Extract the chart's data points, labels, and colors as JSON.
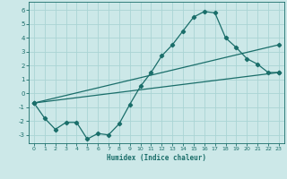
{
  "xlabel": "Humidex (Indice chaleur)",
  "bg_color": "#cce8e8",
  "grid_color": "#aad4d4",
  "line_color": "#1a6e6a",
  "xlim": [
    -0.5,
    23.5
  ],
  "ylim": [
    -3.6,
    6.6
  ],
  "xticks": [
    0,
    1,
    2,
    3,
    4,
    5,
    6,
    7,
    8,
    9,
    10,
    11,
    12,
    13,
    14,
    15,
    16,
    17,
    18,
    19,
    20,
    21,
    22,
    23
  ],
  "yticks": [
    -3,
    -2,
    -1,
    0,
    1,
    2,
    3,
    4,
    5,
    6
  ],
  "line1_x": [
    0,
    1,
    2,
    3,
    4,
    5,
    6,
    7,
    8,
    9,
    10,
    11,
    12,
    13,
    14,
    15,
    16,
    17,
    18,
    19,
    20,
    21,
    22,
    23
  ],
  "line1_y": [
    -0.7,
    -1.8,
    -2.6,
    -2.1,
    -2.1,
    -3.3,
    -2.9,
    -3.0,
    -2.2,
    -0.8,
    0.5,
    1.5,
    2.7,
    3.5,
    4.5,
    5.5,
    5.9,
    5.8,
    4.0,
    3.3,
    2.5,
    2.1,
    1.5,
    1.5
  ],
  "line2_x": [
    0,
    23
  ],
  "line2_y": [
    -0.7,
    1.5
  ],
  "line3_x": [
    0,
    23
  ],
  "line3_y": [
    -0.7,
    3.5
  ]
}
